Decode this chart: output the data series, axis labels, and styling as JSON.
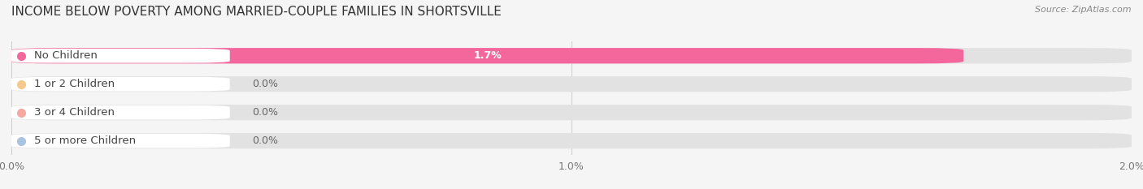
{
  "title": "INCOME BELOW POVERTY AMONG MARRIED-COUPLE FAMILIES IN SHORTSVILLE",
  "source": "Source: ZipAtlas.com",
  "categories": [
    "No Children",
    "1 or 2 Children",
    "3 or 4 Children",
    "5 or more Children"
  ],
  "values": [
    1.7,
    0.0,
    0.0,
    0.0
  ],
  "bar_colors": [
    "#F4679D",
    "#F5C98A",
    "#F5A8A0",
    "#A8C4E0"
  ],
  "xlim": [
    0,
    2.0
  ],
  "xticks": [
    0.0,
    1.0,
    2.0
  ],
  "xticklabels": [
    "0.0%",
    "1.0%",
    "2.0%"
  ],
  "bg_color": "#f5f5f5",
  "bar_bg_color": "#e2e2e2",
  "title_fontsize": 11,
  "tick_fontsize": 9,
  "label_fontsize": 9.5,
  "value_fontsize": 9
}
